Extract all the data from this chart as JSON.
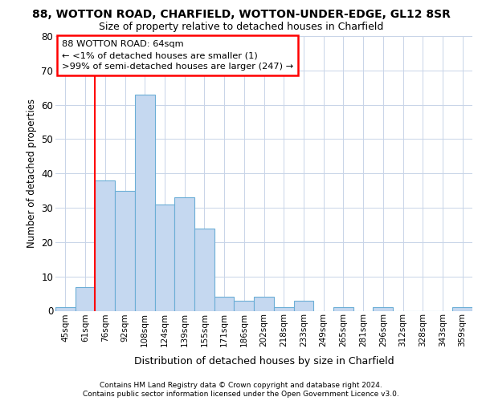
{
  "title_line1": "88, WOTTON ROAD, CHARFIELD, WOTTON-UNDER-EDGE, GL12 8SR",
  "title_line2": "Size of property relative to detached houses in Charfield",
  "xlabel": "Distribution of detached houses by size in Charfield",
  "ylabel": "Number of detached properties",
  "categories": [
    "45sqm",
    "61sqm",
    "76sqm",
    "92sqm",
    "108sqm",
    "124sqm",
    "139sqm",
    "155sqm",
    "171sqm",
    "186sqm",
    "202sqm",
    "218sqm",
    "233sqm",
    "249sqm",
    "265sqm",
    "281sqm",
    "296sqm",
    "312sqm",
    "328sqm",
    "343sqm",
    "359sqm"
  ],
  "values": [
    1,
    7,
    38,
    35,
    63,
    31,
    33,
    24,
    4,
    3,
    4,
    1,
    3,
    0,
    1,
    0,
    1,
    0,
    0,
    0,
    1
  ],
  "bar_color": "#c5d8f0",
  "bar_edge_color": "#6baed6",
  "grid_color": "#c8d4e8",
  "background_color": "#ffffff",
  "red_line_x": 1.5,
  "annotation_text_line1": "88 WOTTON ROAD: 64sqm",
  "annotation_text_line2": "← <1% of detached houses are smaller (1)",
  "annotation_text_line3": ">99% of semi-detached houses are larger (247) →",
  "footer_line1": "Contains HM Land Registry data © Crown copyright and database right 2024.",
  "footer_line2": "Contains public sector information licensed under the Open Government Licence v3.0.",
  "ylim": [
    0,
    80
  ],
  "yticks": [
    0,
    10,
    20,
    30,
    40,
    50,
    60,
    70,
    80
  ]
}
